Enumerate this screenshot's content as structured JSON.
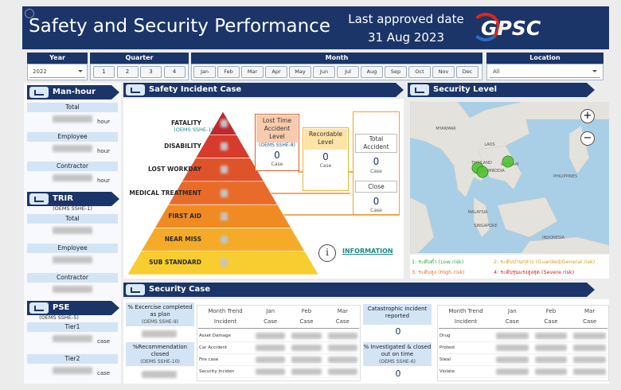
{
  "header": {
    "title": "Safety and Security Performance",
    "approved_label": "Last approved date",
    "approved_date": "31 Aug 2023",
    "logo": "GPSC"
  },
  "filters": {
    "year": {
      "label": "Year",
      "value": "2022"
    },
    "quarter": {
      "label": "Quarter",
      "options": [
        "1",
        "2",
        "3",
        "4"
      ]
    },
    "month": {
      "label": "Month",
      "options": [
        "Jan",
        "Feb",
        "Mar",
        "Apr",
        "May",
        "Jun",
        "Jul",
        "Aug",
        "Sep",
        "Oct",
        "Nov",
        "Dec"
      ]
    },
    "location": {
      "label": "Location",
      "value": "All"
    }
  },
  "man_hour": {
    "title": "Man-hour",
    "unit": "hour",
    "rows": [
      "Total",
      "Employee",
      "Contractor"
    ]
  },
  "trir": {
    "title": "TRIR",
    "code": "(OEMS SSHE-1)",
    "rows": [
      "Total",
      "Employee",
      "Contractor"
    ]
  },
  "pse": {
    "title": "PSE",
    "code": "(OEMS SSHE-5)",
    "unit": "case",
    "rows": [
      "Tier1",
      "Tier2"
    ]
  },
  "safety_incident": {
    "title": "Safety Incident Case",
    "code": "(OEMS SSHE-1)",
    "levels": [
      "FATALITY",
      "DISABILITY",
      "LOST WORKDAY",
      "MEDICAL TREATMENT",
      "FIRST AID",
      "NEAR MISS",
      "SUB STANDARD"
    ],
    "lost_time": {
      "title": "Lost Time Accident Level",
      "code": "(OEMS SSHE-8)",
      "value": 0,
      "unit": "Case"
    },
    "recordable": {
      "title": "Recordable Level",
      "value": 0,
      "unit": "Case"
    },
    "total_accident": {
      "title": "Total Accident",
      "value": 0,
      "unit": "Case"
    },
    "close": {
      "title": "Close",
      "value": 0,
      "unit": "Case"
    },
    "info_icon": "i",
    "info_link": "INFORMATION"
  },
  "security_level": {
    "title": "Security Level",
    "zoom_in": "+",
    "zoom_out": "−",
    "map_labels": [
      "MYANMAR",
      "LAOS",
      "THAILAND",
      "VIETNAM",
      "CAMBODIA",
      "PHILIPPINES",
      "MALAYSIA",
      "SINGAPORE",
      "INDONESIA"
    ],
    "legend": [
      "1: ระดับต่ำ (Low risk)",
      "2: ระดับปานกลาง (Guarded/General risk)",
      "3: ระดับสูง (High risk)",
      "4: ระดับรุนแรงสูงสุด (Severe risk)"
    ]
  },
  "security_case": {
    "title": "Security Case",
    "exercise": {
      "title": "% Excercise completed as plan",
      "code": "(OEMS SSHE-9)"
    },
    "recommendation": {
      "title": "%Recommendation closed",
      "code": "(OEMS SSHE-10)"
    },
    "catastrophic": {
      "title": "Catastrophic incident reported",
      "value": 0
    },
    "investigated": {
      "title": "% Investigated & closed out on time",
      "code": "(OEMS SSHE-6)",
      "value": 0
    },
    "table_1": {
      "trend": "Month Trend",
      "incident": "Incident",
      "case": "Case",
      "months": [
        "Jan",
        "Feb",
        "Mar"
      ],
      "rows": [
        "Asset Damage",
        "Car Accident",
        "Fire case",
        "Security Inciden"
      ]
    },
    "table_2": {
      "trend": "Month Trend",
      "incident": "Incident",
      "case": "Case",
      "months": [
        "Jan",
        "Feb",
        "Mar"
      ],
      "rows": [
        "Drug",
        "Protest",
        "Steal",
        "Violate"
      ]
    }
  }
}
